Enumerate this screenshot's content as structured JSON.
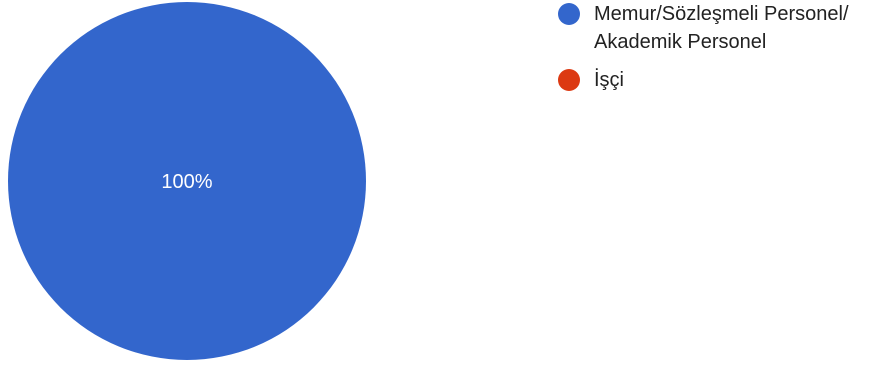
{
  "chart_data": {
    "type": "pie",
    "categories": [
      "Memur/Sözleşmeli Personel/ Akademik Personel",
      "İşçi"
    ],
    "values": [
      100,
      0
    ],
    "percent_labels": [
      "100%",
      ""
    ],
    "colors": [
      "#3366CC",
      "#DC3912"
    ],
    "legend_position": "right"
  }
}
